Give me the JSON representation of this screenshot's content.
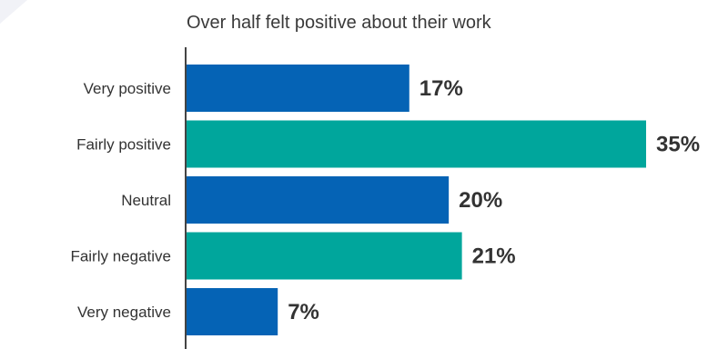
{
  "chart_data": {
    "type": "bar",
    "orientation": "horizontal",
    "title": "Over half felt positive about their work",
    "categories": [
      "Very positive",
      "Fairly positive",
      "Neutral",
      "Fairly negative",
      "Very negative"
    ],
    "values": [
      17,
      35,
      20,
      21,
      7
    ],
    "value_labels": [
      "17%",
      "35%",
      "20%",
      "21%",
      "7%"
    ],
    "bar_colors": [
      "#0563b5",
      "#00a69c",
      "#0563b5",
      "#00a69c",
      "#0563b5"
    ],
    "xlim": [
      0,
      35
    ],
    "grid": false,
    "legend": "none"
  },
  "colors": {
    "axis": "#444444",
    "text": "#333333",
    "corner_shape": "#f1f2f7"
  }
}
